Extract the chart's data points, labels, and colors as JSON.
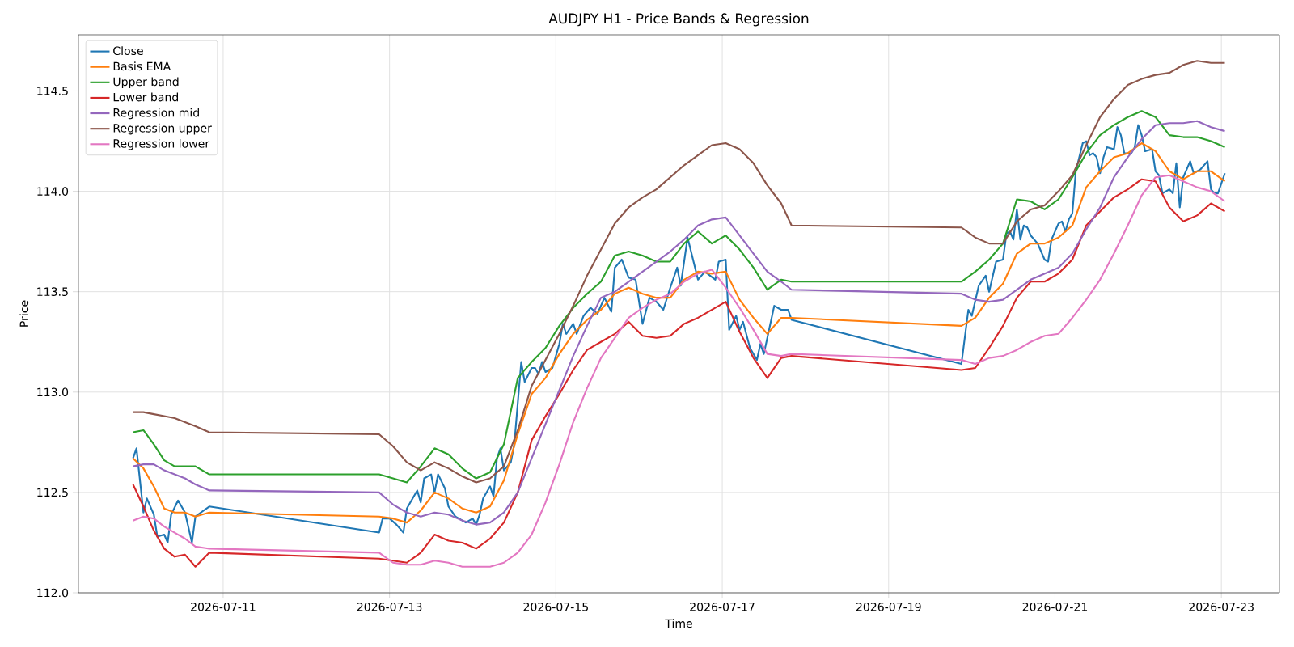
{
  "chart_data": {
    "type": "line",
    "title": "AUDJPY H1 - Price Bands & Regression",
    "xlabel": "Time",
    "ylabel": "Price",
    "xlim": [
      "2026-07-09T06:15",
      "2026-07-23T16:45"
    ],
    "xticks": [
      "2026-07-11",
      "2026-07-13",
      "2026-07-15",
      "2026-07-17",
      "2026-07-19",
      "2026-07-21",
      "2026-07-23"
    ],
    "ylim": [
      112.0,
      114.78
    ],
    "yticks": [
      {
        "value": 112,
        "label": "112.0"
      },
      112.5,
      {
        "value": 113,
        "label": "113.0"
      },
      113.5,
      {
        "value": 114,
        "label": "114.0"
      },
      114.5
    ],
    "grid": true,
    "legend": "top left",
    "x": [
      "2026-07-09T22:00",
      "2026-07-10T01:00",
      "2026-07-10T04:00",
      "2026-07-10T07:00",
      "2026-07-10T10:00",
      "2026-07-10T13:00",
      "2026-07-10T16:00",
      "2026-07-10T20:00",
      "2026-07-12T21:00",
      "2026-07-13T01:00",
      "2026-07-13T05:00",
      "2026-07-13T09:00",
      "2026-07-13T13:00",
      "2026-07-13T17:00",
      "2026-07-13T21:00",
      "2026-07-14T01:00",
      "2026-07-14T05:00",
      "2026-07-14T09:00",
      "2026-07-14T13:00",
      "2026-07-14T17:00",
      "2026-07-14T21:00",
      "2026-07-15T01:00",
      "2026-07-15T05:00",
      "2026-07-15T09:00",
      "2026-07-15T13:00",
      "2026-07-15T17:00",
      "2026-07-15T21:00",
      "2026-07-16T01:00",
      "2026-07-16T05:00",
      "2026-07-16T09:00",
      "2026-07-16T13:00",
      "2026-07-16T17:00",
      "2026-07-16T21:00",
      "2026-07-17T01:00",
      "2026-07-17T05:00",
      "2026-07-17T09:00",
      "2026-07-17T13:00",
      "2026-07-17T17:00",
      "2026-07-17T20:00",
      "2026-07-19T21:00",
      "2026-07-20T01:00",
      "2026-07-20T05:00",
      "2026-07-20T09:00",
      "2026-07-20T13:00",
      "2026-07-20T17:00",
      "2026-07-20T21:00",
      "2026-07-21T01:00",
      "2026-07-21T05:00",
      "2026-07-21T09:00",
      "2026-07-21T13:00",
      "2026-07-21T17:00",
      "2026-07-21T21:00",
      "2026-07-22T01:00",
      "2026-07-22T05:00",
      "2026-07-22T09:00",
      "2026-07-22T13:00",
      "2026-07-22T17:00",
      "2026-07-22T21:00",
      "2026-07-23T01:00"
    ],
    "series": [
      {
        "name": "Close",
        "color": "#1f77b4",
        "x": [
          "2026-07-09T22:00",
          "2026-07-09T23:00",
          "2026-07-10T01:00",
          "2026-07-10T02:00",
          "2026-07-10T04:00",
          "2026-07-10T05:00",
          "2026-07-10T07:00",
          "2026-07-10T08:00",
          "2026-07-10T09:00",
          "2026-07-10T11:00",
          "2026-07-10T13:00",
          "2026-07-10T15:00",
          "2026-07-10T16:00",
          "2026-07-10T20:00",
          "2026-07-12T21:00",
          "2026-07-12T22:00",
          "2026-07-13T00:00",
          "2026-07-13T02:00",
          "2026-07-13T04:00",
          "2026-07-13T05:00",
          "2026-07-13T06:00",
          "2026-07-13T08:00",
          "2026-07-13T09:00",
          "2026-07-13T10:00",
          "2026-07-13T12:00",
          "2026-07-13T13:00",
          "2026-07-13T14:00",
          "2026-07-13T16:00",
          "2026-07-13T17:00",
          "2026-07-13T19:00",
          "2026-07-13T22:00",
          "2026-07-14T00:00",
          "2026-07-14T01:00",
          "2026-07-14T02:00",
          "2026-07-14T03:00",
          "2026-07-14T05:00",
          "2026-07-14T06:00",
          "2026-07-14T07:00",
          "2026-07-14T08:00",
          "2026-07-14T09:00",
          "2026-07-14T11:00",
          "2026-07-14T12:00",
          "2026-07-14T14:00",
          "2026-07-14T15:00",
          "2026-07-14T17:00",
          "2026-07-14T18:00",
          "2026-07-14T19:00",
          "2026-07-14T20:00",
          "2026-07-14T21:00",
          "2026-07-14T23:00",
          "2026-07-15T01:00",
          "2026-07-15T02:00",
          "2026-07-15T03:00",
          "2026-07-15T05:00",
          "2026-07-15T06:00",
          "2026-07-15T08:00",
          "2026-07-15T10:00",
          "2026-07-15T12:00",
          "2026-07-15T14:00",
          "2026-07-15T16:00",
          "2026-07-15T17:00",
          "2026-07-15T19:00",
          "2026-07-15T21:00",
          "2026-07-15T23:00",
          "2026-07-16T01:00",
          "2026-07-16T03:00",
          "2026-07-16T05:00",
          "2026-07-16T07:00",
          "2026-07-16T09:00",
          "2026-07-16T11:00",
          "2026-07-16T12:00",
          "2026-07-16T14:00",
          "2026-07-16T17:00",
          "2026-07-16T19:00",
          "2026-07-16T22:00",
          "2026-07-16T23:00",
          "2026-07-17T01:00",
          "2026-07-17T02:00",
          "2026-07-17T04:00",
          "2026-07-17T05:00",
          "2026-07-17T06:00",
          "2026-07-17T08:00",
          "2026-07-17T10:00",
          "2026-07-17T11:00",
          "2026-07-17T12:00",
          "2026-07-17T15:00",
          "2026-07-17T17:00",
          "2026-07-17T19:00",
          "2026-07-17T20:00",
          "2026-07-19T21:00",
          "2026-07-19T23:00",
          "2026-07-20T00:00",
          "2026-07-20T02:00",
          "2026-07-20T04:00",
          "2026-07-20T05:00",
          "2026-07-20T07:00",
          "2026-07-20T09:00",
          "2026-07-20T10:00",
          "2026-07-20T11:00",
          "2026-07-20T12:00",
          "2026-07-20T13:00",
          "2026-07-20T14:00",
          "2026-07-20T15:00",
          "2026-07-20T16:00",
          "2026-07-20T17:00",
          "2026-07-20T19:00",
          "2026-07-20T21:00",
          "2026-07-20T22:00",
          "2026-07-20T23:00",
          "2026-07-21T01:00",
          "2026-07-21T02:00",
          "2026-07-21T03:00",
          "2026-07-21T04:00",
          "2026-07-21T05:00",
          "2026-07-21T06:00",
          "2026-07-21T08:00",
          "2026-07-21T09:00",
          "2026-07-21T10:00",
          "2026-07-21T11:00",
          "2026-07-21T12:00",
          "2026-07-21T13:00",
          "2026-07-21T14:00",
          "2026-07-21T15:00",
          "2026-07-21T17:00",
          "2026-07-21T18:00",
          "2026-07-21T19:00",
          "2026-07-21T20:00",
          "2026-07-21T22:00",
          "2026-07-21T23:00",
          "2026-07-22T00:00",
          "2026-07-22T01:00",
          "2026-07-22T02:00",
          "2026-07-22T04:00",
          "2026-07-22T05:00",
          "2026-07-22T06:00",
          "2026-07-22T07:00",
          "2026-07-22T09:00",
          "2026-07-22T10:00",
          "2026-07-22T11:00",
          "2026-07-22T12:00",
          "2026-07-22T13:00",
          "2026-07-22T15:00",
          "2026-07-22T16:00",
          "2026-07-22T18:00",
          "2026-07-22T20:00",
          "2026-07-22T21:00",
          "2026-07-22T22:00",
          "2026-07-22T23:00",
          "2026-07-23T01:00"
        ],
        "values": [
          112.67,
          112.72,
          112.4,
          112.47,
          112.39,
          112.28,
          112.29,
          112.25,
          112.39,
          112.46,
          112.4,
          112.25,
          112.38,
          112.43,
          112.3,
          112.37,
          112.37,
          112.34,
          112.3,
          112.42,
          112.45,
          112.51,
          112.45,
          112.57,
          112.59,
          112.5,
          112.59,
          112.52,
          112.43,
          112.38,
          112.35,
          112.37,
          112.34,
          112.39,
          112.47,
          112.53,
          112.48,
          112.67,
          112.72,
          112.61,
          112.65,
          112.74,
          113.15,
          113.05,
          113.12,
          113.12,
          113.09,
          113.15,
          113.1,
          113.12,
          113.24,
          113.34,
          113.29,
          113.34,
          113.29,
          113.38,
          113.42,
          113.39,
          113.47,
          113.4,
          113.62,
          113.66,
          113.57,
          113.56,
          113.34,
          113.47,
          113.45,
          113.41,
          113.52,
          113.62,
          113.53,
          113.77,
          113.56,
          113.6,
          113.56,
          113.65,
          113.66,
          113.31,
          113.38,
          113.31,
          113.35,
          113.22,
          113.16,
          113.24,
          113.19,
          113.43,
          113.41,
          113.41,
          113.36,
          113.14,
          113.41,
          113.38,
          113.53,
          113.58,
          113.5,
          113.65,
          113.66,
          113.79,
          113.8,
          113.76,
          113.91,
          113.76,
          113.83,
          113.82,
          113.78,
          113.74,
          113.66,
          113.65,
          113.76,
          113.84,
          113.85,
          113.8,
          113.86,
          113.89,
          114.1,
          114.24,
          114.25,
          114.18,
          114.19,
          114.17,
          114.09,
          114.17,
          114.22,
          114.21,
          114.32,
          114.28,
          114.19,
          114.19,
          114.22,
          114.33,
          114.28,
          114.2,
          114.21,
          114.1,
          114.08,
          113.99,
          114.01,
          113.99,
          114.14,
          113.92,
          114.07,
          114.15,
          114.09,
          114.11,
          114.15,
          114.01,
          113.99,
          113.99,
          114.09
        ]
      },
      {
        "name": "Basis EMA",
        "color": "#ff7f0e",
        "values": [
          112.67,
          112.62,
          112.53,
          112.42,
          112.4,
          112.4,
          112.38,
          112.4,
          112.38,
          112.37,
          112.35,
          112.41,
          112.5,
          112.47,
          112.42,
          112.4,
          112.43,
          112.56,
          112.79,
          112.99,
          113.07,
          113.19,
          113.29,
          113.36,
          113.41,
          113.49,
          113.52,
          113.49,
          113.47,
          113.47,
          113.56,
          113.6,
          113.59,
          113.6,
          113.46,
          113.37,
          113.29,
          113.37,
          113.37,
          113.33,
          113.37,
          113.47,
          113.54,
          113.69,
          113.74,
          113.74,
          113.77,
          113.83,
          114.02,
          114.1,
          114.17,
          114.19,
          114.24,
          114.2,
          114.1,
          114.06,
          114.1,
          114.1,
          114.05
        ]
      },
      {
        "name": "Upper band",
        "color": "#2ca02c",
        "values": [
          112.8,
          112.81,
          112.74,
          112.66,
          112.63,
          112.63,
          112.63,
          112.59,
          112.59,
          112.57,
          112.55,
          112.63,
          112.72,
          112.69,
          112.62,
          112.57,
          112.6,
          112.74,
          113.07,
          113.15,
          113.22,
          113.33,
          113.42,
          113.49,
          113.55,
          113.68,
          113.7,
          113.68,
          113.65,
          113.65,
          113.74,
          113.8,
          113.74,
          113.78,
          113.71,
          113.62,
          113.51,
          113.56,
          113.55,
          113.55,
          113.6,
          113.66,
          113.74,
          113.96,
          113.95,
          113.91,
          113.96,
          114.07,
          114.19,
          114.28,
          114.33,
          114.37,
          114.4,
          114.37,
          114.28,
          114.27,
          114.27,
          114.25,
          114.22
        ]
      },
      {
        "name": "Lower band",
        "color": "#d62728",
        "values": [
          112.54,
          112.43,
          112.31,
          112.22,
          112.18,
          112.19,
          112.13,
          112.2,
          112.17,
          112.16,
          112.15,
          112.2,
          112.29,
          112.26,
          112.25,
          112.22,
          112.27,
          112.35,
          112.5,
          112.76,
          112.88,
          112.99,
          113.11,
          113.21,
          113.25,
          113.29,
          113.35,
          113.28,
          113.27,
          113.28,
          113.34,
          113.37,
          113.41,
          113.45,
          113.3,
          113.17,
          113.07,
          113.17,
          113.18,
          113.11,
          113.12,
          113.22,
          113.33,
          113.47,
          113.55,
          113.55,
          113.59,
          113.66,
          113.83,
          113.9,
          113.97,
          114.01,
          114.06,
          114.05,
          113.92,
          113.85,
          113.88,
          113.94,
          113.9
        ]
      },
      {
        "name": "Regression mid",
        "color": "#9467bd",
        "values": [
          112.63,
          112.64,
          112.64,
          112.61,
          112.59,
          112.57,
          112.54,
          112.51,
          112.5,
          112.44,
          112.4,
          112.38,
          112.4,
          112.39,
          112.36,
          112.34,
          112.35,
          112.4,
          112.5,
          112.67,
          112.84,
          113.01,
          113.18,
          113.33,
          113.47,
          113.5,
          113.55,
          113.6,
          113.65,
          113.7,
          113.76,
          113.83,
          113.86,
          113.87,
          113.78,
          113.69,
          113.6,
          113.55,
          113.51,
          113.49,
          113.46,
          113.45,
          113.46,
          113.51,
          113.56,
          113.59,
          113.62,
          113.69,
          113.81,
          113.92,
          114.07,
          114.17,
          114.26,
          114.33,
          114.34,
          114.34,
          114.35,
          114.32,
          114.3
        ]
      },
      {
        "name": "Regression upper",
        "color": "#8c564b",
        "values": [
          112.9,
          112.9,
          112.89,
          112.88,
          112.87,
          112.85,
          112.83,
          112.8,
          112.79,
          112.73,
          112.65,
          112.61,
          112.65,
          112.62,
          112.58,
          112.55,
          112.57,
          112.63,
          112.81,
          113.03,
          113.16,
          113.29,
          113.43,
          113.58,
          113.71,
          113.84,
          113.92,
          113.97,
          114.01,
          114.07,
          114.13,
          114.18,
          114.23,
          114.24,
          114.21,
          114.14,
          114.03,
          113.94,
          113.83,
          113.82,
          113.77,
          113.74,
          113.74,
          113.85,
          113.91,
          113.93,
          114.0,
          114.08,
          114.23,
          114.37,
          114.46,
          114.53,
          114.56,
          114.58,
          114.59,
          114.63,
          114.65,
          114.64,
          114.64
        ]
      },
      {
        "name": "Regression lower",
        "color": "#e377c2",
        "values": [
          112.36,
          112.38,
          112.37,
          112.33,
          112.3,
          112.27,
          112.23,
          112.22,
          112.2,
          112.15,
          112.14,
          112.14,
          112.16,
          112.15,
          112.13,
          112.13,
          112.13,
          112.15,
          112.2,
          112.29,
          112.45,
          112.64,
          112.85,
          113.02,
          113.17,
          113.27,
          113.37,
          113.42,
          113.46,
          113.49,
          113.55,
          113.59,
          113.61,
          113.52,
          113.42,
          113.31,
          113.19,
          113.18,
          113.19,
          113.16,
          113.14,
          113.17,
          113.18,
          113.21,
          113.25,
          113.28,
          113.29,
          113.37,
          113.46,
          113.56,
          113.69,
          113.83,
          113.98,
          114.07,
          114.08,
          114.05,
          114.02,
          114.0,
          113.95
        ]
      }
    ]
  }
}
